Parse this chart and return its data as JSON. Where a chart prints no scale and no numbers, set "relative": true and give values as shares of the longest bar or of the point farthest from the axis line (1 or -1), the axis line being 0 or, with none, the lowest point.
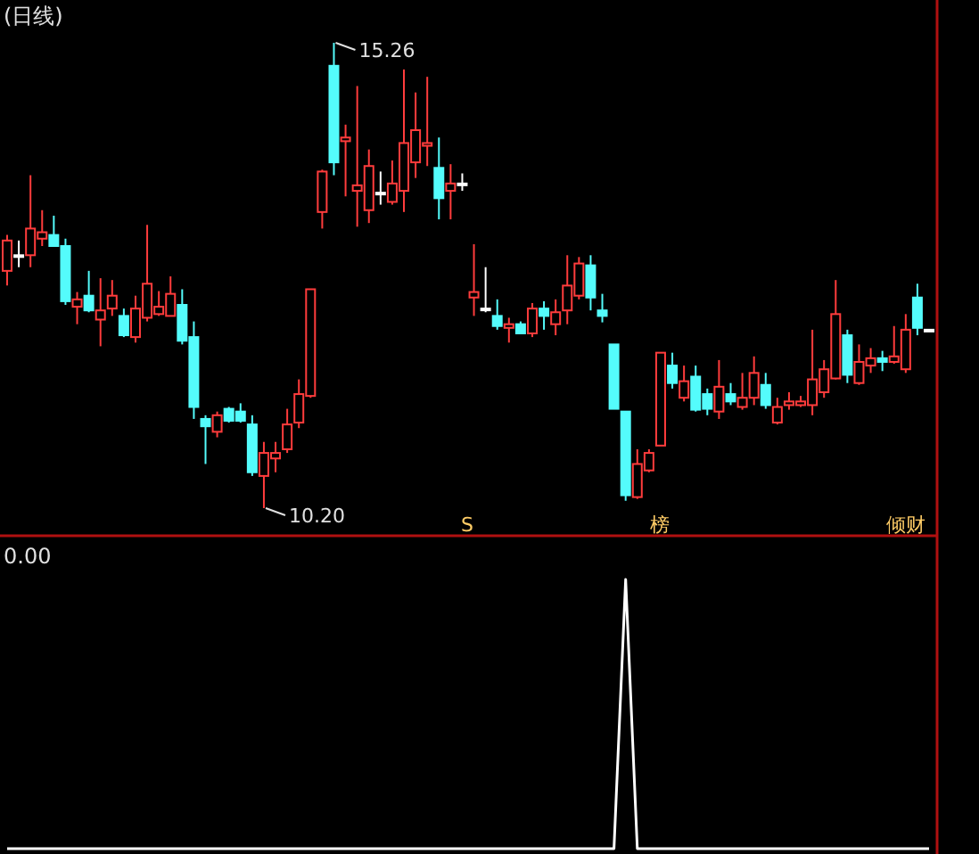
{
  "chart_data": [
    {
      "type": "candlestick",
      "title": "(日线)",
      "relative": false,
      "categories": [
        null,
        null,
        null,
        null,
        null,
        null,
        null,
        null,
        null,
        null,
        null,
        null,
        null,
        null,
        null,
        null,
        null,
        null,
        null,
        null,
        null,
        null,
        null,
        null,
        null,
        null,
        null,
        null,
        null,
        null,
        null,
        null,
        null,
        null,
        null,
        null,
        null,
        null,
        null,
        null,
        null,
        null,
        null,
        null,
        null,
        null,
        null,
        null,
        null,
        null,
        null,
        null,
        null,
        null,
        null,
        null,
        null,
        null,
        null,
        null,
        null,
        null,
        null,
        null,
        null,
        null,
        null,
        null,
        null,
        null,
        null,
        null,
        null,
        null,
        null,
        null,
        null,
        null,
        null,
        null
      ],
      "ohlc": [
        [
          12.78,
          13.17,
          12.62,
          13.11
        ],
        [
          12.95,
          13.11,
          12.82,
          12.95
        ],
        [
          12.95,
          13.82,
          12.82,
          13.24
        ],
        [
          13.13,
          13.44,
          13.05,
          13.2
        ],
        [
          13.17,
          13.38,
          13.05,
          13.05
        ],
        [
          13.05,
          13.13,
          12.41,
          12.45
        ],
        [
          12.39,
          12.55,
          12.2,
          12.47
        ],
        [
          12.51,
          12.78,
          12.33,
          12.35
        ],
        [
          12.25,
          12.7,
          11.96,
          12.35
        ],
        [
          12.37,
          12.68,
          12.29,
          12.51
        ],
        [
          12.29,
          12.37,
          12.06,
          12.08
        ],
        [
          12.06,
          12.51,
          12.0,
          12.37
        ],
        [
          12.27,
          13.28,
          12.23,
          12.64
        ],
        [
          12.31,
          12.56,
          12.29,
          12.39
        ],
        [
          12.29,
          12.72,
          12.29,
          12.53
        ],
        [
          12.41,
          12.58,
          11.98,
          12.02
        ],
        [
          12.06,
          12.23,
          11.17,
          11.3
        ],
        [
          11.17,
          11.21,
          10.68,
          11.09
        ],
        [
          11.03,
          11.25,
          10.97,
          11.21
        ],
        [
          11.28,
          11.3,
          11.13,
          11.15
        ],
        [
          11.25,
          11.34,
          11.13,
          11.15
        ],
        [
          11.11,
          11.21,
          10.55,
          10.59
        ],
        [
          10.55,
          10.92,
          10.2,
          10.8
        ],
        [
          10.74,
          10.92,
          10.59,
          10.8
        ],
        [
          10.84,
          11.28,
          10.8,
          11.11
        ],
        [
          11.13,
          11.6,
          11.07,
          11.44
        ],
        [
          11.42,
          12.58,
          11.4,
          12.58
        ],
        [
          13.42,
          13.88,
          13.24,
          13.86
        ],
        [
          15.01,
          15.26,
          13.82,
          13.96
        ],
        [
          14.19,
          14.37,
          13.59,
          14.23
        ],
        [
          13.65,
          14.79,
          13.26,
          13.71
        ],
        [
          13.44,
          14.1,
          13.3,
          13.92
        ],
        [
          13.63,
          13.86,
          13.5,
          13.63
        ],
        [
          13.53,
          13.98,
          13.5,
          13.73
        ],
        [
          13.65,
          14.97,
          13.42,
          14.17
        ],
        [
          13.96,
          14.72,
          13.79,
          14.31
        ],
        [
          14.14,
          14.89,
          13.92,
          14.17
        ],
        [
          13.9,
          14.23,
          13.34,
          13.57
        ],
        [
          13.65,
          13.94,
          13.34,
          13.73
        ],
        [
          13.73,
          13.84,
          13.65,
          13.73
        ],
        [
          12.49,
          13.07,
          12.29,
          12.55
        ],
        [
          12.37,
          12.82,
          12.33,
          12.37
        ],
        [
          12.29,
          12.47,
          12.14,
          12.18
        ],
        [
          12.16,
          12.27,
          12.0,
          12.2
        ],
        [
          12.2,
          12.23,
          12.1,
          12.1
        ],
        [
          12.1,
          12.43,
          12.06,
          12.37
        ],
        [
          12.37,
          12.45,
          12.14,
          12.29
        ],
        [
          12.2,
          12.47,
          12.08,
          12.33
        ],
        [
          12.35,
          12.95,
          12.2,
          12.62
        ],
        [
          12.51,
          12.93,
          12.47,
          12.86
        ],
        [
          12.84,
          12.95,
          12.35,
          12.49
        ],
        [
          12.35,
          12.53,
          12.22,
          12.29
        ],
        [
          11.98,
          11.98,
          11.28,
          11.28
        ],
        [
          11.25,
          11.25,
          10.28,
          10.34
        ],
        [
          10.32,
          10.84,
          10.3,
          10.68
        ],
        [
          10.61,
          10.84,
          10.59,
          10.8
        ],
        [
          10.88,
          11.89,
          10.88,
          11.89
        ],
        [
          11.75,
          11.89,
          11.5,
          11.56
        ],
        [
          11.4,
          11.75,
          11.36,
          11.58
        ],
        [
          11.63,
          11.75,
          11.25,
          11.27
        ],
        [
          11.44,
          11.5,
          11.21,
          11.28
        ],
        [
          11.25,
          11.81,
          11.17,
          11.52
        ],
        [
          11.44,
          11.56,
          11.32,
          11.36
        ],
        [
          11.3,
          11.67,
          11.27,
          11.4
        ],
        [
          11.4,
          11.85,
          11.32,
          11.67
        ],
        [
          11.54,
          11.67,
          11.28,
          11.32
        ],
        [
          11.13,
          11.4,
          11.11,
          11.3
        ],
        [
          11.32,
          11.46,
          11.27,
          11.36
        ],
        [
          11.32,
          11.42,
          11.3,
          11.36
        ],
        [
          11.32,
          12.14,
          11.21,
          11.6
        ],
        [
          11.46,
          11.81,
          11.4,
          11.71
        ],
        [
          11.61,
          12.68,
          11.6,
          12.31
        ],
        [
          12.08,
          12.14,
          11.56,
          11.65
        ],
        [
          11.56,
          11.98,
          11.54,
          11.79
        ],
        [
          11.75,
          11.94,
          11.67,
          11.83
        ],
        [
          11.83,
          11.91,
          11.69,
          11.79
        ],
        [
          11.79,
          12.18,
          11.77,
          11.85
        ],
        [
          11.71,
          12.31,
          11.67,
          12.14
        ],
        [
          12.49,
          12.64,
          12.08,
          12.16
        ],
        [
          12.14,
          12.14,
          12.14,
          12.14
        ]
      ],
      "colors": [
        "#ff3c3c",
        "#ffffff",
        "#ff3c3c",
        "#ff3c3c",
        "#54fcfc",
        "#54fcfc",
        "#ff3c3c",
        "#54fcfc",
        "#ff3c3c",
        "#ff3c3c",
        "#54fcfc",
        "#ff3c3c",
        "#ff3c3c",
        "#ff3c3c",
        "#ff3c3c",
        "#54fcfc",
        "#54fcfc",
        "#54fcfc",
        "#ff3c3c",
        "#54fcfc",
        "#54fcfc",
        "#54fcfc",
        "#ff3c3c",
        "#ff3c3c",
        "#ff3c3c",
        "#ff3c3c",
        "#ff3c3c",
        "#ff3c3c",
        "#54fcfc",
        "#ff3c3c",
        "#ff3c3c",
        "#ff3c3c",
        "#ffffff",
        "#ff3c3c",
        "#ff3c3c",
        "#ff3c3c",
        "#ff3c3c",
        "#54fcfc",
        "#ff3c3c",
        "#ffffff",
        "#ff3c3c",
        "#ffffff",
        "#54fcfc",
        "#ff3c3c",
        "#54fcfc",
        "#ff3c3c",
        "#54fcfc",
        "#ff3c3c",
        "#ff3c3c",
        "#ff3c3c",
        "#54fcfc",
        "#54fcfc",
        "#54fcfc",
        "#54fcfc",
        "#ff3c3c",
        "#ff3c3c",
        "#ff3c3c",
        "#54fcfc",
        "#ff3c3c",
        "#54fcfc",
        "#54fcfc",
        "#ff3c3c",
        "#54fcfc",
        "#ff3c3c",
        "#ff3c3c",
        "#54fcfc",
        "#ff3c3c",
        "#ff3c3c",
        "#ff3c3c",
        "#ff3c3c",
        "#ff3c3c",
        "#ff3c3c",
        "#54fcfc",
        "#ff3c3c",
        "#ff3c3c",
        "#54fcfc",
        "#ff3c3c",
        "#ff3c3c",
        "#54fcfc",
        "#ffffff"
      ],
      "annotations": [
        "15.26",
        "10.20",
        "S",
        "榜",
        "倾财"
      ]
    },
    {
      "type": "line",
      "relative": true,
      "categories": [
        null,
        null,
        null,
        null,
        null,
        null,
        null,
        null,
        null,
        null,
        null,
        null,
        null,
        null,
        null,
        null,
        null,
        null,
        null,
        null,
        null,
        null,
        null,
        null,
        null,
        null,
        null,
        null,
        null,
        null,
        null,
        null,
        null,
        null,
        null,
        null,
        null,
        null,
        null,
        null,
        null,
        null,
        null,
        null,
        null,
        null,
        null,
        null,
        null,
        null,
        null,
        null,
        null,
        null,
        null,
        null,
        null,
        null,
        null,
        null,
        null,
        null,
        null,
        null,
        null,
        null,
        null,
        null,
        null,
        null,
        null,
        null,
        null,
        null,
        null,
        null,
        null,
        null,
        null,
        null
      ],
      "series": [
        {
          "color": "#ffffff",
          "values": [
            0,
            0,
            0,
            0,
            0,
            0,
            0,
            0,
            0,
            0,
            0,
            0,
            0,
            0,
            0,
            0,
            0,
            0,
            0,
            0,
            0,
            0,
            0,
            0,
            0,
            0,
            0,
            0,
            0,
            0,
            0,
            0,
            0,
            0,
            0,
            0,
            0,
            0,
            0,
            0,
            0,
            0,
            0,
            0,
            0,
            0,
            0,
            0,
            0,
            0,
            0,
            0,
            0,
            1,
            0,
            0,
            0,
            0,
            0,
            0,
            0,
            0,
            0,
            0,
            0,
            0,
            0,
            0,
            0,
            0,
            0,
            0,
            0,
            0,
            0,
            0,
            0,
            0,
            0,
            0
          ]
        }
      ],
      "annotations": [
        "0.00"
      ]
    }
  ]
}
